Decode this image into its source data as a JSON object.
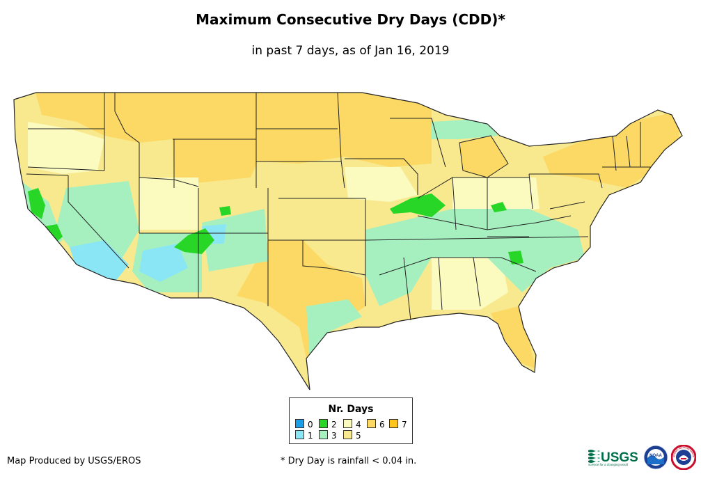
{
  "title": "Maximum Consecutive Dry Days (CDD)*",
  "subtitle": "in past 7 days, as of Jan 16, 2019",
  "legend": {
    "title": "Nr. Days",
    "items": [
      {
        "label": "0",
        "color": "#1a9ee8"
      },
      {
        "label": "1",
        "color": "#8ae6f5"
      },
      {
        "label": "2",
        "color": "#27d627"
      },
      {
        "label": "3",
        "color": "#a6f0c0"
      },
      {
        "label": "4",
        "color": "#fbfbc0"
      },
      {
        "label": "5",
        "color": "#f8e98e"
      },
      {
        "label": "6",
        "color": "#fbd964"
      },
      {
        "label": "7",
        "color": "#ffc51a"
      }
    ]
  },
  "footer": {
    "credit": "Map Produced by USGS/EROS",
    "note": "* Dry Day is rainfall < 0.04 in."
  },
  "logos": {
    "usgs": "USGS",
    "usgs_tagline": "science for a changing world",
    "noaa": "NOAA",
    "nws": "NATIONAL WEATHER SERVICE"
  }
}
